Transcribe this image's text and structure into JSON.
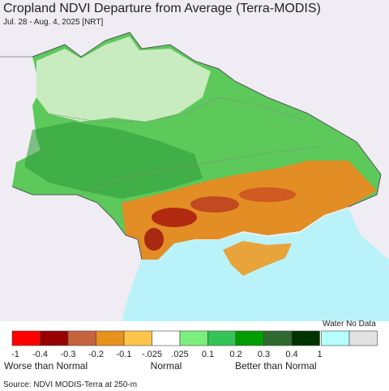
{
  "header": {
    "title": "Cropland NDVI Departure from Average (Terra-MODIS)",
    "subtitle": "Jul. 28 - Aug. 4, 2025 [NRT]"
  },
  "legend": {
    "colors": [
      "#ff0000",
      "#990000",
      "#c6633f",
      "#e8921e",
      "#ffc54a",
      "#ffffff",
      "#7cee7c",
      "#33c455",
      "#009e00",
      "#2f6b30",
      "#003300"
    ],
    "labels": [
      "-1",
      "-0.4",
      "-0.3",
      "-0.2",
      "-0.1",
      "-.025",
      ".025",
      "0.1",
      "0.2",
      "0.3",
      "0.4",
      "1"
    ],
    "extra_label": "Water No Data",
    "extra_colors": [
      "#b5ffff",
      "#e2e2e2"
    ],
    "captions": [
      "Worse than Normal",
      "Normal",
      "Better than Normal"
    ]
  },
  "source": "Source: NDVI MODIS-Terra at 250-m"
}
